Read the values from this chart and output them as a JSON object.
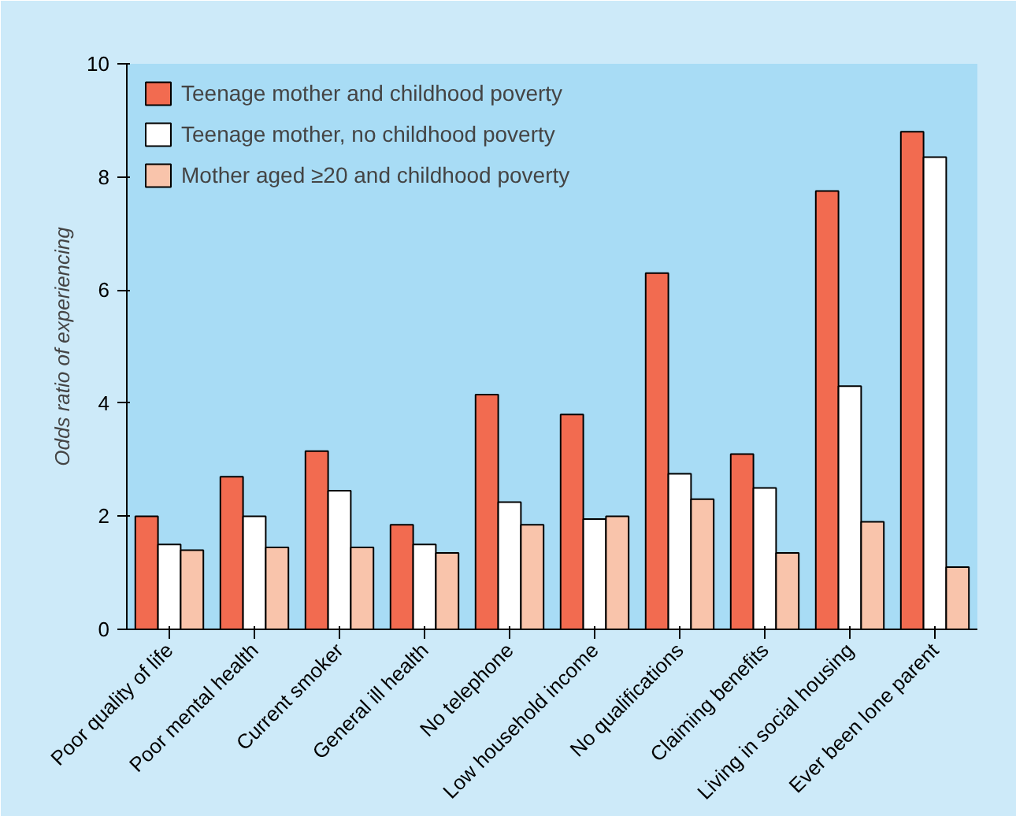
{
  "chart_data": {
    "type": "bar",
    "ylabel": "Odds ratio of experiencing",
    "categories": [
      "Poor quality of life",
      "Poor mental health",
      "Current smoker",
      "General ill health",
      "No telephone",
      "Low household income",
      "No qualifications",
      "Claiming benefits",
      "Living in social housing",
      "Ever been lone parent"
    ],
    "series": [
      {
        "name": "Teenage mother and childhood poverty",
        "color": "#f26b50",
        "values": [
          2.0,
          2.7,
          3.15,
          1.85,
          4.15,
          3.8,
          6.3,
          3.1,
          7.75,
          8.8
        ]
      },
      {
        "name": "Teenage mother, no childhood poverty",
        "color": "#ffffff",
        "values": [
          1.5,
          2.0,
          2.45,
          1.5,
          2.25,
          1.95,
          2.75,
          2.5,
          4.3,
          8.35
        ]
      },
      {
        "name": "Mother aged ≥20 and childhood poverty",
        "color": "#f9c4ab",
        "values": [
          1.4,
          1.45,
          1.45,
          1.35,
          1.85,
          2.0,
          2.3,
          1.35,
          1.9,
          1.1
        ]
      }
    ],
    "ylim": [
      0,
      10
    ],
    "yticks": [
      0,
      2,
      4,
      6,
      8,
      10
    ],
    "grid": false,
    "legend": "top left"
  }
}
